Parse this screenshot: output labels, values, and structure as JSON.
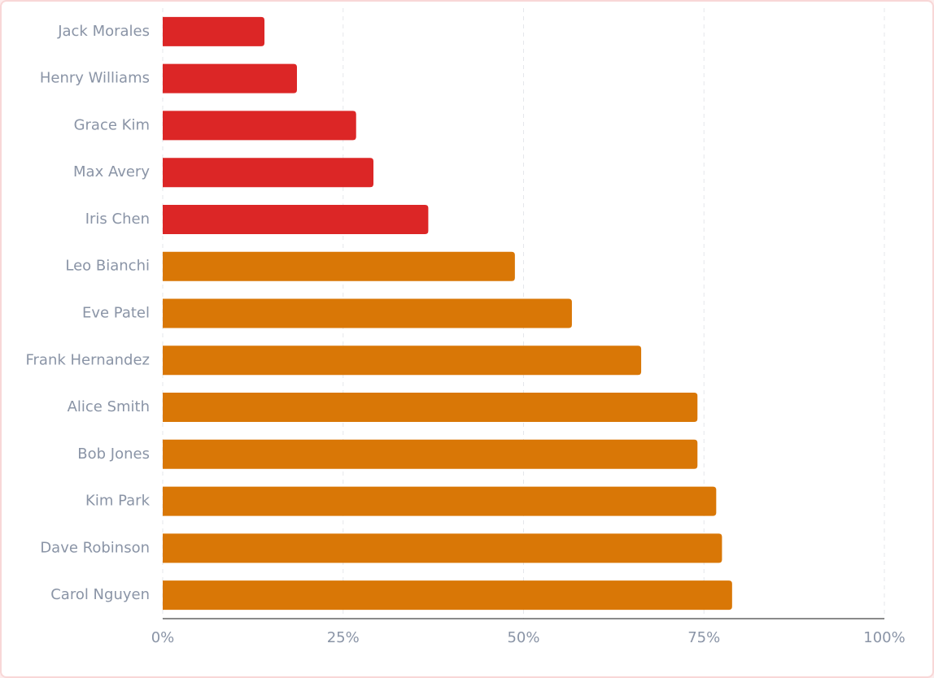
{
  "chart_data": {
    "type": "bar",
    "orientation": "horizontal",
    "categories": [
      "Jack Morales",
      "Henry Williams",
      "Grace Kim",
      "Max Avery",
      "Iris Chen",
      "Leo Bianchi",
      "Eve Patel",
      "Frank Hernandez",
      "Alice Smith",
      "Bob Jones",
      "Kim Park",
      "Dave Robinson",
      "Carol Nguyen"
    ],
    "values": [
      14.1,
      18.6,
      26.8,
      29.2,
      36.8,
      48.8,
      56.7,
      66.3,
      74.1,
      74.1,
      76.7,
      77.5,
      78.9
    ],
    "colors": [
      "#dc2626",
      "#dc2626",
      "#dc2626",
      "#dc2626",
      "#dc2626",
      "#d97706",
      "#d97706",
      "#d97706",
      "#d97706",
      "#d97706",
      "#d97706",
      "#d97706",
      "#d97706"
    ],
    "xlim": [
      0,
      100
    ],
    "xticks": [
      {
        "value": 0,
        "label": "0%"
      },
      {
        "value": 25,
        "label": "25%"
      },
      {
        "value": 50,
        "label": "50%"
      },
      {
        "value": 75,
        "label": "75%"
      },
      {
        "value": 100,
        "label": "100%"
      }
    ],
    "grid": true
  }
}
